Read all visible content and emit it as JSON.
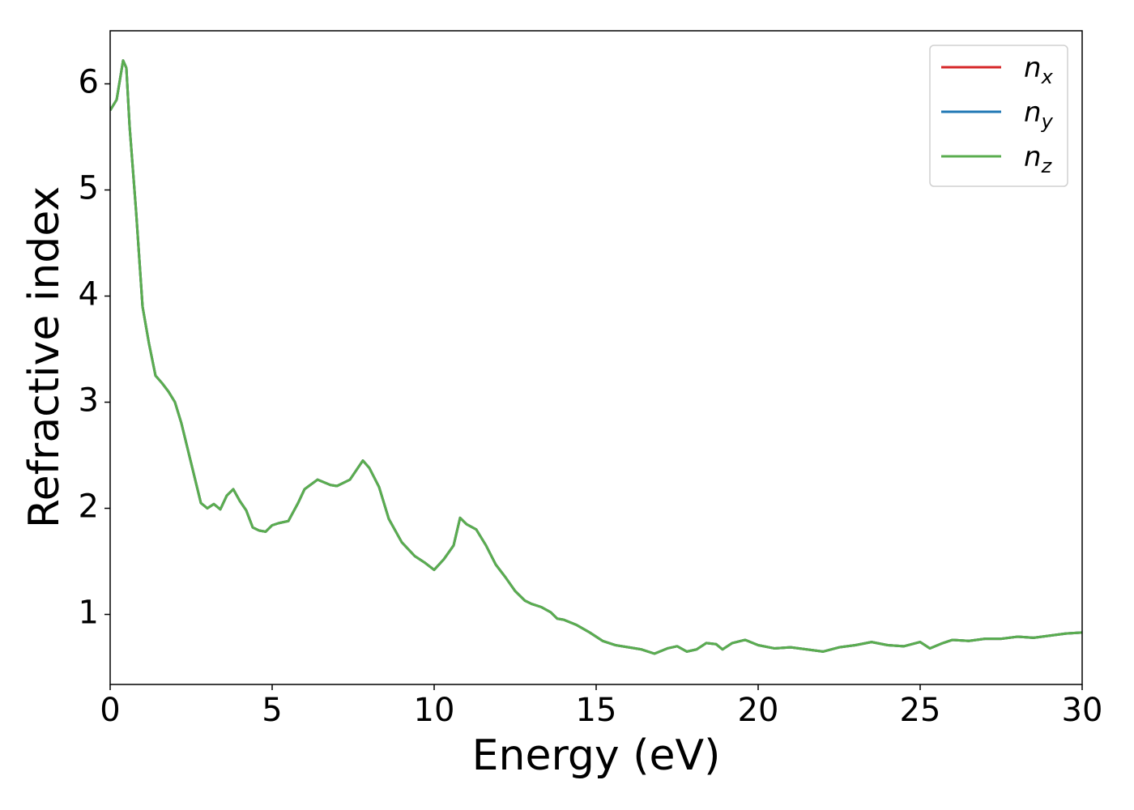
{
  "chart_data": {
    "type": "line",
    "xlabel": "Energy (eV)",
    "ylabel": "Refractive index",
    "xlim": [
      0,
      30
    ],
    "xticks": [
      0,
      5,
      10,
      15,
      20,
      25,
      30
    ],
    "ylim": [
      0.34,
      6.5
    ],
    "yticks": [
      1,
      2,
      3,
      4,
      5,
      6
    ],
    "legend": "upper right",
    "grid": false,
    "x": [
      0,
      0.2,
      0.4,
      0.5,
      0.6,
      0.8,
      1.0,
      1.2,
      1.4,
      1.6,
      1.8,
      2.0,
      2.2,
      2.4,
      2.6,
      2.8,
      3.0,
      3.2,
      3.4,
      3.6,
      3.8,
      4.0,
      4.2,
      4.4,
      4.6,
      4.8,
      5.0,
      5.2,
      5.5,
      5.8,
      6.0,
      6.4,
      6.8,
      7.0,
      7.4,
      7.8,
      8.0,
      8.3,
      8.6,
      9.0,
      9.4,
      9.7,
      10.0,
      10.3,
      10.6,
      10.8,
      11.0,
      11.3,
      11.6,
      11.9,
      12.2,
      12.5,
      12.8,
      13.0,
      13.3,
      13.6,
      13.8,
      14.0,
      14.4,
      14.8,
      15.2,
      15.6,
      16.0,
      16.4,
      16.8,
      17.2,
      17.5,
      17.8,
      18.1,
      18.4,
      18.7,
      18.9,
      19.2,
      19.6,
      20.0,
      20.5,
      21.0,
      21.5,
      22.0,
      22.5,
      23.0,
      23.5,
      24.0,
      24.5,
      25.0,
      25.3,
      25.7,
      26.0,
      26.5,
      27.0,
      27.5,
      28.0,
      28.5,
      29.0,
      29.5,
      30.0
    ],
    "series": [
      {
        "name": "nx",
        "color": "#d62728",
        "values": [
          5.75,
          5.85,
          6.22,
          6.15,
          5.6,
          4.8,
          3.9,
          3.55,
          3.25,
          3.18,
          3.1,
          3.0,
          2.8,
          2.55,
          2.3,
          2.05,
          2.0,
          2.04,
          1.99,
          2.12,
          2.18,
          2.07,
          1.98,
          1.82,
          1.79,
          1.78,
          1.84,
          1.86,
          1.88,
          2.05,
          2.18,
          2.27,
          2.22,
          2.21,
          2.27,
          2.45,
          2.38,
          2.2,
          1.9,
          1.68,
          1.55,
          1.49,
          1.42,
          1.52,
          1.65,
          1.91,
          1.85,
          1.8,
          1.65,
          1.47,
          1.35,
          1.22,
          1.13,
          1.1,
          1.07,
          1.02,
          0.96,
          0.95,
          0.9,
          0.83,
          0.75,
          0.71,
          0.69,
          0.67,
          0.63,
          0.68,
          0.7,
          0.65,
          0.67,
          0.73,
          0.72,
          0.67,
          0.73,
          0.76,
          0.71,
          0.68,
          0.69,
          0.67,
          0.65,
          0.69,
          0.71,
          0.74,
          0.71,
          0.7,
          0.74,
          0.68,
          0.73,
          0.76,
          0.75,
          0.77,
          0.77,
          0.79,
          0.78,
          0.8,
          0.82,
          0.83
        ]
      },
      {
        "name": "ny",
        "color": "#1f77b4",
        "values": [
          5.75,
          5.85,
          6.22,
          6.15,
          5.6,
          4.8,
          3.9,
          3.55,
          3.25,
          3.18,
          3.1,
          3.0,
          2.8,
          2.55,
          2.3,
          2.05,
          2.0,
          2.04,
          1.99,
          2.12,
          2.18,
          2.07,
          1.98,
          1.82,
          1.79,
          1.78,
          1.84,
          1.86,
          1.88,
          2.05,
          2.18,
          2.27,
          2.22,
          2.21,
          2.27,
          2.45,
          2.38,
          2.2,
          1.9,
          1.68,
          1.55,
          1.49,
          1.42,
          1.52,
          1.65,
          1.91,
          1.85,
          1.8,
          1.65,
          1.47,
          1.35,
          1.22,
          1.13,
          1.1,
          1.07,
          1.02,
          0.96,
          0.95,
          0.9,
          0.83,
          0.75,
          0.71,
          0.69,
          0.67,
          0.63,
          0.68,
          0.7,
          0.65,
          0.67,
          0.73,
          0.72,
          0.67,
          0.73,
          0.76,
          0.71,
          0.68,
          0.69,
          0.67,
          0.65,
          0.69,
          0.71,
          0.74,
          0.71,
          0.7,
          0.74,
          0.68,
          0.73,
          0.76,
          0.75,
          0.77,
          0.77,
          0.79,
          0.78,
          0.8,
          0.82,
          0.83
        ]
      },
      {
        "name": "nz",
        "color": "#5aad4f",
        "values": [
          5.75,
          5.85,
          6.22,
          6.15,
          5.6,
          4.8,
          3.9,
          3.55,
          3.25,
          3.18,
          3.1,
          3.0,
          2.8,
          2.55,
          2.3,
          2.05,
          2.0,
          2.04,
          1.99,
          2.12,
          2.18,
          2.07,
          1.98,
          1.82,
          1.79,
          1.78,
          1.84,
          1.86,
          1.88,
          2.05,
          2.18,
          2.27,
          2.22,
          2.21,
          2.27,
          2.45,
          2.38,
          2.2,
          1.9,
          1.68,
          1.55,
          1.49,
          1.42,
          1.52,
          1.65,
          1.91,
          1.85,
          1.8,
          1.65,
          1.47,
          1.35,
          1.22,
          1.13,
          1.1,
          1.07,
          1.02,
          0.96,
          0.95,
          0.9,
          0.83,
          0.75,
          0.71,
          0.69,
          0.67,
          0.63,
          0.68,
          0.7,
          0.65,
          0.67,
          0.73,
          0.72,
          0.67,
          0.73,
          0.76,
          0.71,
          0.68,
          0.69,
          0.67,
          0.65,
          0.69,
          0.71,
          0.74,
          0.71,
          0.7,
          0.74,
          0.68,
          0.73,
          0.76,
          0.75,
          0.77,
          0.77,
          0.79,
          0.78,
          0.8,
          0.82,
          0.83
        ]
      }
    ]
  }
}
